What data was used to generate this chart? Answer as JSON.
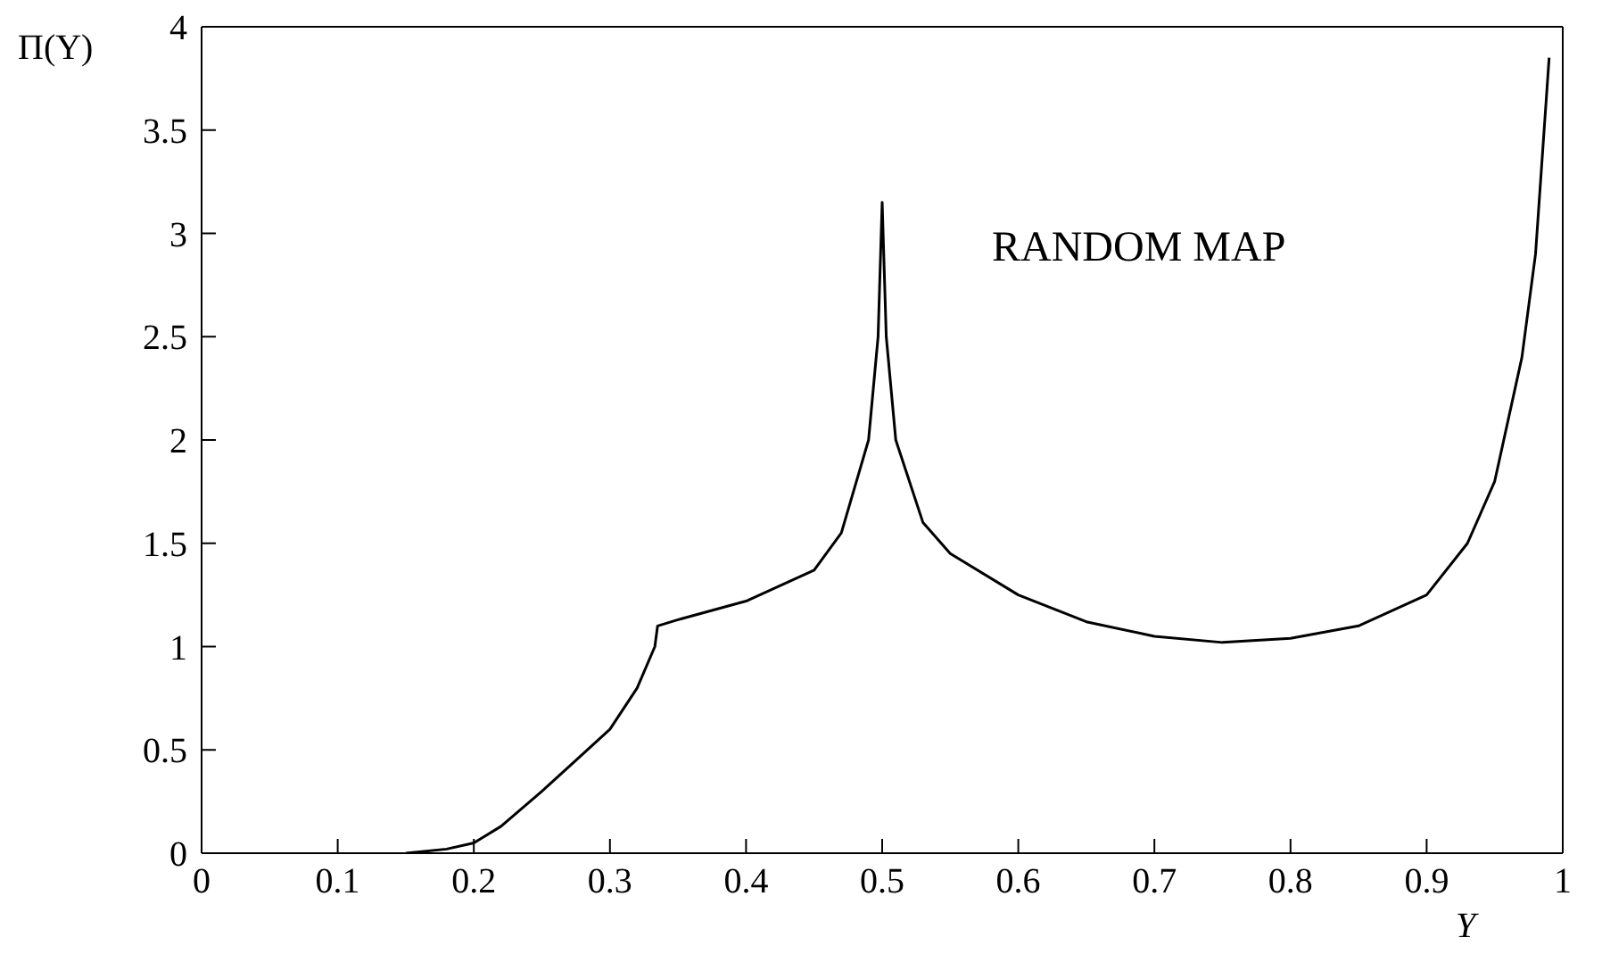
{
  "chart_data": {
    "type": "line",
    "xlabel": "Y",
    "ylabel": "Π(Y)",
    "annotations": [
      "RANDOM MAP"
    ],
    "x": [
      0.15,
      0.18,
      0.2,
      0.22,
      0.25,
      0.27,
      0.3,
      0.32,
      0.333,
      0.335,
      0.35,
      0.4,
      0.45,
      0.47,
      0.49,
      0.497,
      0.5,
      0.503,
      0.51,
      0.53,
      0.55,
      0.6,
      0.65,
      0.7,
      0.75,
      0.8,
      0.85,
      0.9,
      0.93,
      0.95,
      0.97,
      0.98,
      0.99
    ],
    "series": [
      {
        "color": "#000000",
        "values": [
          0,
          0.02,
          0.05,
          0.13,
          0.3,
          0.42,
          0.6,
          0.8,
          1.0,
          1.1,
          1.13,
          1.22,
          1.37,
          1.55,
          2.0,
          2.5,
          3.15,
          2.5,
          2.0,
          1.6,
          1.45,
          1.25,
          1.12,
          1.05,
          1.02,
          1.04,
          1.1,
          1.25,
          1.5,
          1.8,
          2.4,
          2.9,
          3.85
        ]
      }
    ],
    "xlim": [
      0,
      1
    ],
    "xticks": [
      0,
      0.1,
      0.2,
      0.3,
      0.4,
      0.5,
      0.6,
      0.7,
      0.8,
      0.9,
      1
    ],
    "ylim": [
      0,
      4
    ],
    "yticks": [
      0,
      0.5,
      1,
      1.5,
      2,
      2.5,
      3,
      3.5,
      4
    ],
    "grid": false,
    "legend": false,
    "marker": "none",
    "line_style": "solid"
  }
}
